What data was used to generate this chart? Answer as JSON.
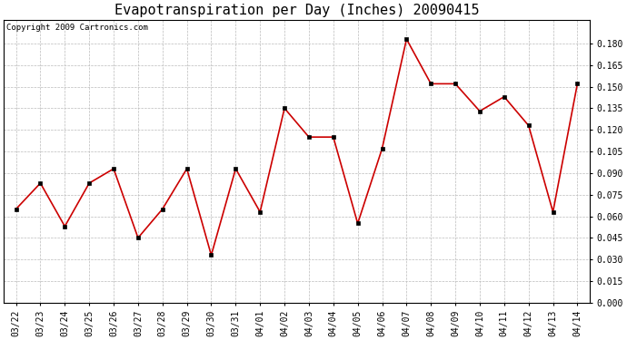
{
  "title": "Evapotranspiration per Day (Inches) 20090415",
  "copyright_text": "Copyright 2009 Cartronics.com",
  "labels": [
    "03/22",
    "03/23",
    "03/24",
    "03/25",
    "03/26",
    "03/27",
    "03/28",
    "03/29",
    "03/30",
    "03/31",
    "04/01",
    "04/02",
    "04/03",
    "04/04",
    "04/05",
    "04/06",
    "04/07",
    "04/08",
    "04/09",
    "04/10",
    "04/11",
    "04/12",
    "04/13",
    "04/14"
  ],
  "values": [
    0.065,
    0.083,
    0.053,
    0.083,
    0.093,
    0.045,
    0.065,
    0.093,
    0.033,
    0.093,
    0.063,
    0.135,
    0.115,
    0.115,
    0.055,
    0.107,
    0.183,
    0.152,
    0.152,
    0.133,
    0.143,
    0.123,
    0.063,
    0.152
  ],
  "line_color": "#cc0000",
  "marker": "s",
  "marker_size": 2.5,
  "marker_color": "#000000",
  "ylim": [
    0.0,
    0.1965
  ],
  "yticks": [
    0.0,
    0.015,
    0.03,
    0.045,
    0.06,
    0.075,
    0.09,
    0.105,
    0.12,
    0.135,
    0.15,
    0.165,
    0.18
  ],
  "grid_color": "#bbbbbb",
  "background_color": "#ffffff",
  "title_fontsize": 11,
  "copyright_fontsize": 6.5,
  "tick_fontsize": 7
}
